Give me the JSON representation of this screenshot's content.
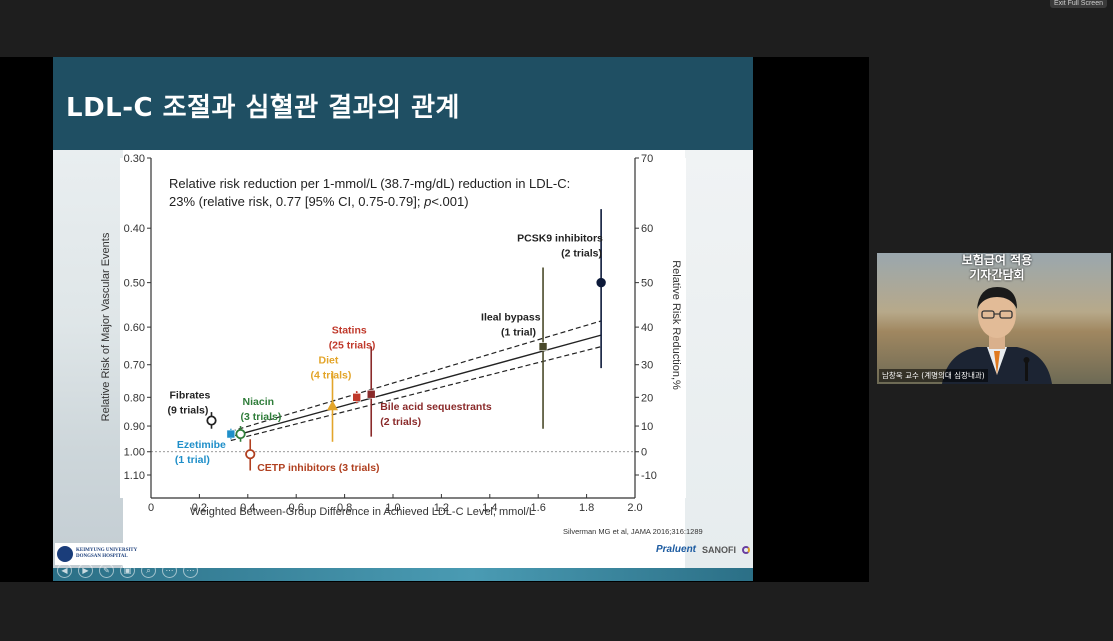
{
  "window": {
    "exit_fullscreen_label": "Exit Full Screen"
  },
  "slide": {
    "title": "LDL-C 조절과 심혈관 결과의 관계",
    "annotation_line1": "Relative risk reduction per 1-mmol/L (38.7-mg/dL) reduction in LDL-C:",
    "annotation_line2": "23% (relative risk, 0.77 [95% CI, 0.75-0.79]; p<.001)",
    "citation": "Silverman MG et al, JAMA 2016;316:1289",
    "logo_text_1": "KEIMYUNG UNIVERSITY",
    "logo_text_2": "DONGSAN HOSPITAL",
    "brand_1": "Praluent",
    "brand_2": "SANOFI"
  },
  "chart_data": {
    "type": "scatter",
    "xlabel": "Weighted Between-Group Difference in Achieved LDL-C Level, mmol/L",
    "ylabel": "Relative Risk of Major Vascular Events",
    "y2label": "Relative Risk Reduction,%",
    "xlim": [
      0,
      2.0
    ],
    "x_ticks": [
      "0",
      "0.2",
      "0.4",
      "0.6",
      "0.8",
      "1.0",
      "1.2",
      "1.4",
      "1.6",
      "1.8",
      "2.0"
    ],
    "y_ticks": [
      "0.30",
      "0.40",
      "0.50",
      "0.60",
      "0.70",
      "0.80",
      "0.90",
      "1.00",
      "1.10"
    ],
    "y_tick_values": [
      0.3,
      0.4,
      0.5,
      0.6,
      0.7,
      0.8,
      0.9,
      1.0,
      1.1
    ],
    "y2_ticks": [
      "70",
      "60",
      "50",
      "40",
      "30",
      "20",
      "10",
      "0",
      "-10"
    ],
    "y2_tick_values": [
      0.3,
      0.4,
      0.5,
      0.6,
      0.7,
      0.8,
      0.9,
      1.0,
      1.1
    ],
    "regression": {
      "x": [
        0.33,
        1.86
      ],
      "y": [
        0.94,
        0.62
      ]
    },
    "ci_upper": {
      "x": [
        0.33,
        1.86
      ],
      "y": [
        0.92,
        0.585
      ]
    },
    "ci_lower": {
      "x": [
        0.33,
        1.86
      ],
      "y": [
        0.955,
        0.65
      ]
    },
    "points": [
      {
        "label": "Fibrates",
        "sub": "(9 trials)",
        "x": 0.25,
        "y": 0.88,
        "lo": 0.85,
        "hi": 0.91,
        "color": "#222222",
        "marker": "open-circle"
      },
      {
        "label": "Niacin",
        "sub": "(3 trials)",
        "x": 0.37,
        "y": 0.93,
        "lo": 0.9,
        "hi": 0.96,
        "color": "#2f7d3a",
        "marker": "open-circle"
      },
      {
        "label": "Ezetimibe",
        "sub": "(1 trial)",
        "x": 0.33,
        "y": 0.93,
        "lo": 0.91,
        "hi": 0.95,
        "color": "#1f8fc9",
        "marker": "square"
      },
      {
        "label": "CETP inhibitors (3 trials)",
        "sub": "",
        "x": 0.41,
        "y": 1.01,
        "lo": 0.95,
        "hi": 1.08,
        "color": "#b04020",
        "marker": "open-circle"
      },
      {
        "label": "Diet",
        "sub": "(4 trials)",
        "x": 0.75,
        "y": 0.83,
        "lo": 0.72,
        "hi": 0.96,
        "color": "#e3a52a",
        "marker": "triangle"
      },
      {
        "label": "Statins",
        "sub": "(25 trials)",
        "x": 0.85,
        "y": 0.8,
        "lo": 0.78,
        "hi": 0.82,
        "color": "#c0392b",
        "marker": "square"
      },
      {
        "label": "Bile acid sequestrants",
        "sub": "(2 trials)",
        "x": 0.91,
        "y": 0.79,
        "lo": 0.65,
        "hi": 0.94,
        "color": "#8a2a2a",
        "marker": "square"
      },
      {
        "label": "Ileal bypass",
        "sub": "(1 trial)",
        "x": 1.62,
        "y": 0.65,
        "lo": 0.47,
        "hi": 0.91,
        "color": "#4a4a2a",
        "marker": "square"
      },
      {
        "label": "PCSK9 inhibitors",
        "sub": "(2 trials)",
        "x": 1.86,
        "y": 0.5,
        "lo": 0.37,
        "hi": 0.71,
        "color": "#0c1a3a",
        "marker": "filled-circle"
      }
    ]
  },
  "video": {
    "banner_line1": "보험급여 적용",
    "banner_line2": "기자간담회",
    "presenter_name": "남창욱 교수 (계명의대 심장내과)"
  },
  "ppt_controls": [
    "◀",
    "▶",
    "✎",
    "▣",
    "⌕",
    "⋯",
    "⋯"
  ]
}
